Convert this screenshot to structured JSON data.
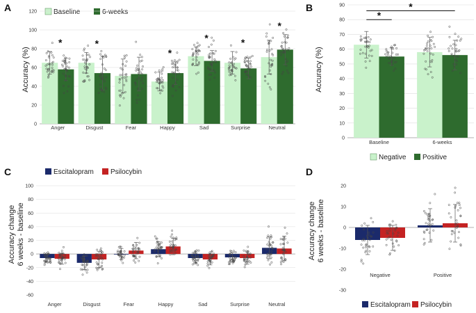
{
  "colors": {
    "baseline": "#c9f2cb",
    "sixweeks": "#2e6b2e",
    "negative": "#c9f2cb",
    "positive": "#2e6b2e",
    "escitalopram": "#1b2a6b",
    "psilocybin": "#c42323"
  },
  "chart_data": [
    {
      "panel": "A",
      "type": "bar",
      "ylabel": "Accuracy (%)",
      "ylim": [
        0,
        120
      ],
      "yticks": [
        0,
        20,
        40,
        60,
        80,
        100,
        120
      ],
      "categories": [
        "Anger",
        "Disgust",
        "Fear",
        "Happy",
        "Sad",
        "Surprise",
        "Neutral"
      ],
      "series": [
        {
          "name": "Baseline",
          "values": [
            65,
            65,
            51,
            45,
            72,
            65,
            71
          ],
          "err": [
            12,
            11,
            18,
            10,
            10,
            12,
            18
          ]
        },
        {
          "name": "6-weeks",
          "values": [
            58,
            54,
            53,
            54,
            67,
            59,
            79
          ],
          "err": [
            12,
            18,
            18,
            12,
            11,
            11,
            16
          ]
        }
      ],
      "significant": [
        true,
        true,
        false,
        true,
        true,
        true,
        true
      ],
      "legend": [
        "Baseline",
        "6-weeks"
      ]
    },
    {
      "panel": "B",
      "type": "bar",
      "ylabel": "Accuracy (%)",
      "ylim": [
        0,
        90
      ],
      "yticks": [
        0,
        10,
        20,
        30,
        40,
        50,
        60,
        70,
        80,
        90
      ],
      "categories": [
        "Baseline",
        "6-weeks"
      ],
      "series": [
        {
          "name": "Negative",
          "values": [
            63,
            58
          ],
          "err": [
            9,
            10
          ]
        },
        {
          "name": "Positive",
          "values": [
            55,
            56
          ],
          "err": [
            6,
            10
          ]
        }
      ],
      "brackets": [
        {
          "from": "Baseline-Negative",
          "to": "Baseline-Positive",
          "label": "*"
        },
        {
          "from": "Baseline-Negative",
          "to": "6-weeks-Positive",
          "label": "*"
        }
      ],
      "legend": [
        "Negative",
        "Positive"
      ]
    },
    {
      "panel": "C",
      "type": "bar",
      "ylabel": [
        "Accuracy change",
        "6 weeks - baseline"
      ],
      "ylim": [
        -60,
        100
      ],
      "yticks": [
        -60,
        -40,
        -20,
        0,
        20,
        40,
        60,
        80,
        100
      ],
      "categories": [
        "Anger",
        "Disgust",
        "Fear",
        "Happy",
        "Sad",
        "Surprise",
        "Neutral"
      ],
      "series": [
        {
          "name": "Escitalopram",
          "values": [
            -6,
            -13,
            0,
            7,
            -6,
            -5,
            9
          ],
          "err": [
            6,
            10,
            8,
            11,
            7,
            7,
            16
          ]
        },
        {
          "name": "Psilocybin",
          "values": [
            -7,
            -8,
            5,
            11,
            -8,
            -6,
            8
          ],
          "err": [
            8,
            12,
            12,
            12,
            8,
            9,
            18
          ]
        }
      ],
      "legend": [
        "Escitalopram",
        "Psilocybin"
      ]
    },
    {
      "panel": "D",
      "type": "bar",
      "ylabel": [
        "Accuracy change",
        "6 weeks - baseline"
      ],
      "ylim": [
        -30,
        20
      ],
      "yticks": [
        -30,
        -20,
        -10,
        0,
        10,
        20
      ],
      "categories": [
        "Negative",
        "Positive"
      ],
      "series": [
        {
          "name": "Escitalopram",
          "values": [
            -6,
            1
          ],
          "err": [
            7,
            8
          ]
        },
        {
          "name": "Psilocybin",
          "values": [
            -5,
            2
          ],
          "err": [
            6,
            9
          ]
        }
      ],
      "legend": [
        "Escitalopram",
        "Psilocybin"
      ]
    }
  ]
}
